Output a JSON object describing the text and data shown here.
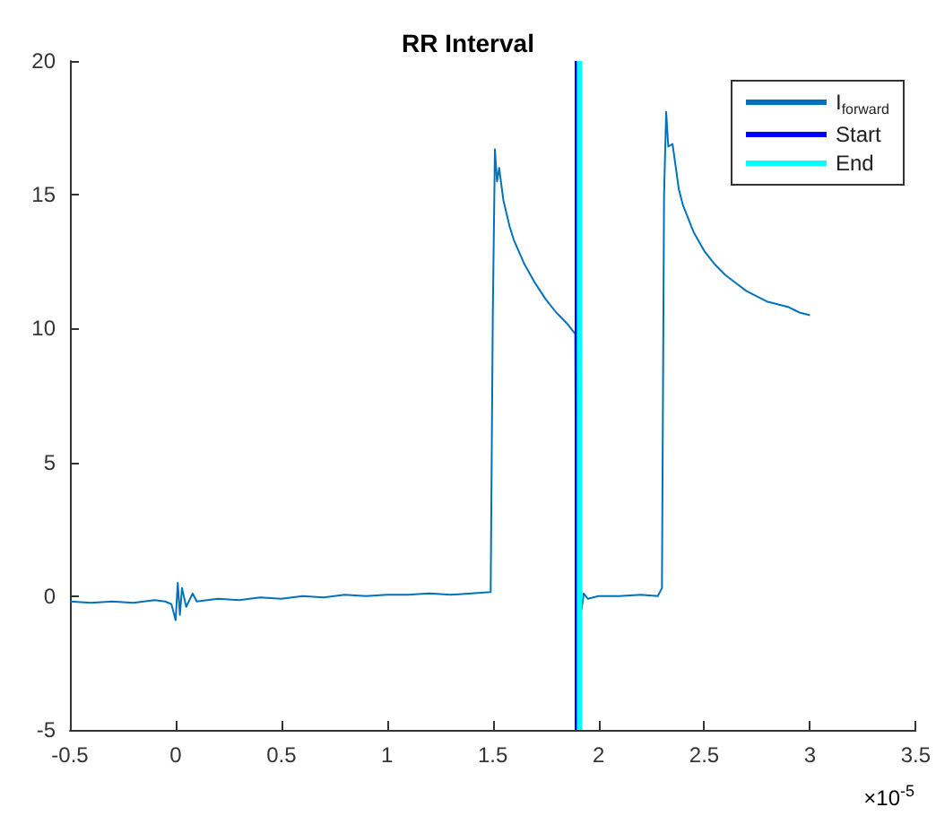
{
  "chart_data": {
    "type": "line",
    "title": "RR Interval",
    "xlim": [
      -0.5,
      3.5
    ],
    "xticks": [
      -0.5,
      0,
      0.5,
      1,
      1.5,
      2,
      2.5,
      3,
      3.5
    ],
    "ylim": [
      -5,
      20
    ],
    "yticks": [
      -5,
      0,
      5,
      10,
      15,
      20
    ],
    "grid": false,
    "legend": "top right",
    "annotations": [
      "×10$^{-5}$"
    ],
    "series": [
      {
        "name": "I$_{forward}$",
        "color": "#0072bd",
        "x": [
          -0.5,
          -0.4,
          -0.3,
          -0.2,
          -0.1,
          -0.05,
          -0.02,
          0,
          0.01,
          0.02,
          0.03,
          0.05,
          0.08,
          0.1,
          0.2,
          0.3,
          0.4,
          0.5,
          0.6,
          0.7,
          0.8,
          0.9,
          1.0,
          1.1,
          1.2,
          1.3,
          1.4,
          1.49,
          1.5,
          1.51,
          1.52,
          1.53,
          1.55,
          1.58,
          1.6,
          1.65,
          1.7,
          1.75,
          1.8,
          1.85,
          1.89,
          1.895,
          1.92,
          1.93,
          1.95,
          2.0,
          2.1,
          2.2,
          2.28,
          2.3,
          2.31,
          2.32,
          2.33,
          2.35,
          2.38,
          2.4,
          2.45,
          2.5,
          2.55,
          2.6,
          2.65,
          2.7,
          2.75,
          2.8,
          2.85,
          2.9,
          2.95,
          3.0
        ],
        "values": [
          -0.2,
          -0.25,
          -0.2,
          -0.25,
          -0.15,
          -0.2,
          -0.3,
          -0.9,
          0.5,
          -0.7,
          0.3,
          -0.4,
          0.1,
          -0.2,
          -0.1,
          -0.15,
          -0.05,
          -0.1,
          0,
          -0.05,
          0.05,
          0,
          0.05,
          0.05,
          0.1,
          0.05,
          0.1,
          0.15,
          10.5,
          16.7,
          15.5,
          16,
          14.8,
          13.8,
          13.3,
          12.4,
          11.7,
          11.1,
          10.6,
          10.2,
          9.8,
          0,
          -0.5,
          0.1,
          -0.1,
          0,
          0,
          0.05,
          0,
          0.3,
          15,
          18.1,
          16.8,
          16.9,
          15.2,
          14.6,
          13.6,
          12.9,
          12.4,
          12,
          11.7,
          11.4,
          11.2,
          11,
          10.9,
          10.8,
          10.6,
          10.5
        ]
      },
      {
        "name": "Start",
        "color": "#0000ff",
        "x": [
          1.9,
          1.9
        ],
        "values": [
          -5,
          20
        ]
      },
      {
        "name": "End",
        "color": "#00ffff",
        "x": [
          1.91,
          1.91
        ],
        "values": [
          -5,
          20
        ]
      }
    ]
  }
}
